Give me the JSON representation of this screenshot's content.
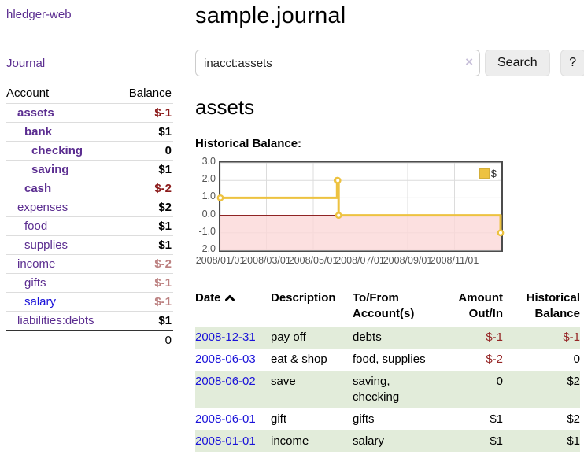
{
  "brand": "hledger-web",
  "nav": {
    "journal_label": "Journal"
  },
  "sidebar_table": {
    "headers": {
      "account": "Account",
      "balance": "Balance"
    },
    "rows": [
      {
        "name": "assets",
        "indent": 1,
        "highlighted": true,
        "muted": false,
        "visited": true,
        "balance": "$-1"
      },
      {
        "name": "bank",
        "indent": 2,
        "highlighted": true,
        "muted": false,
        "visited": true,
        "balance": "$1"
      },
      {
        "name": "checking",
        "indent": 3,
        "highlighted": true,
        "muted": false,
        "visited": true,
        "balance": "0"
      },
      {
        "name": "saving",
        "indent": 3,
        "highlighted": true,
        "muted": false,
        "visited": true,
        "balance": "$1"
      },
      {
        "name": "cash",
        "indent": 2,
        "highlighted": true,
        "muted": false,
        "visited": true,
        "balance": "$-2"
      },
      {
        "name": "expenses",
        "indent": 1,
        "highlighted": false,
        "muted": false,
        "visited": true,
        "balance": "$2"
      },
      {
        "name": "food",
        "indent": 2,
        "highlighted": false,
        "muted": false,
        "visited": true,
        "balance": "$1"
      },
      {
        "name": "supplies",
        "indent": 2,
        "highlighted": false,
        "muted": false,
        "visited": true,
        "balance": "$1"
      },
      {
        "name": "income",
        "indent": 1,
        "highlighted": false,
        "muted": true,
        "visited": true,
        "balance": "$-2"
      },
      {
        "name": "gifts",
        "indent": 2,
        "highlighted": false,
        "muted": true,
        "visited": true,
        "balance": "$-1"
      },
      {
        "name": "salary",
        "indent": 2,
        "highlighted": false,
        "muted": true,
        "visited": false,
        "balance": "$-1"
      },
      {
        "name": "liabilities:debts",
        "indent": 1,
        "highlighted": false,
        "muted": false,
        "visited": true,
        "balance": "$1"
      }
    ],
    "total": "0"
  },
  "header": {
    "title": "sample.journal"
  },
  "search": {
    "value": "inacct:assets",
    "clear_icon": "×",
    "search_label": "Search",
    "help_label": "?"
  },
  "register": {
    "account_title": "assets",
    "chart_title": "Historical Balance:",
    "table": {
      "headers": {
        "date": "Date",
        "sort_icon": "chevron-up",
        "description": "Description",
        "accounts": "To/From Account(s)",
        "amount": "Amount Out/In",
        "balance": "Historical Balance"
      },
      "rows": [
        {
          "date": "2008-12-31",
          "description": "pay off",
          "accounts": "debts",
          "amount": "$-1",
          "balance": "$-1"
        },
        {
          "date": "2008-06-03",
          "description": "eat & shop",
          "accounts": "food, supplies",
          "amount": "$-2",
          "balance": "0"
        },
        {
          "date": "2008-06-02",
          "description": "save",
          "accounts": "saving, checking",
          "amount": "0",
          "balance": "$2"
        },
        {
          "date": "2008-06-01",
          "description": "gift",
          "accounts": "gifts",
          "amount": "$1",
          "balance": "$2"
        },
        {
          "date": "2008-01-01",
          "description": "income",
          "accounts": "salary",
          "amount": "$1",
          "balance": "$1"
        }
      ]
    }
  },
  "chart_data": {
    "type": "line",
    "title": "Historical Balance:",
    "line_style": "step",
    "x_start": "2008-01-01",
    "x_end": "2009-01-01",
    "x_ticks": [
      "2008/01/01",
      "2008/03/01",
      "2008/05/01",
      "2008/07/01",
      "2008/09/01",
      "2008/11/01"
    ],
    "y_ticks": [
      "3.0",
      "2.0",
      "1.0",
      "0.0",
      "-1.0",
      "-2.0"
    ],
    "ylim": [
      -2,
      3
    ],
    "grid": true,
    "legend_position": "top-right",
    "series": [
      {
        "name": "$",
        "color": "#edc240",
        "points": [
          [
            "2008-01-01",
            1
          ],
          [
            "2008-06-01",
            2
          ],
          [
            "2008-06-02",
            2
          ],
          [
            "2008-06-03",
            0
          ],
          [
            "2008-12-31",
            -1
          ]
        ]
      }
    ],
    "negative_region_color": "#fbd8d8",
    "zero_line_color": "#8f2424",
    "grid_color": "#dcdcdc"
  }
}
